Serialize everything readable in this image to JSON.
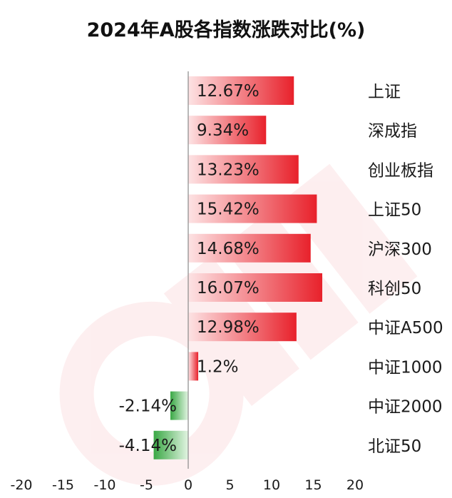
{
  "chart_data": {
    "type": "bar",
    "orientation": "horizontal",
    "title": "2024年A股各指数涨跌对比(%)",
    "categories": [
      "上证",
      "深成指",
      "创业板指",
      "上证50",
      "沪深300",
      "科创50",
      "中证A500",
      "中证1000",
      "中证2000",
      "北证50"
    ],
    "values": [
      12.67,
      9.34,
      13.23,
      15.42,
      14.68,
      16.07,
      12.98,
      1.2,
      -2.14,
      -4.14
    ],
    "value_labels": [
      "12.67%",
      "9.34%",
      "13.23%",
      "15.42%",
      "14.68%",
      "16.07%",
      "12.98%",
      "1.2%",
      "-2.14%",
      "-4.14%"
    ],
    "xlim": [
      -20,
      20
    ],
    "xticks": [
      -20,
      -15,
      -10,
      -5,
      0,
      5,
      10,
      15,
      20
    ],
    "xlabel": "",
    "ylabel": "",
    "grid": false,
    "legend": "none",
    "colors": {
      "positive": "#e8212b",
      "positive_fade": "#fde3e4",
      "negative": "#3aa845",
      "negative_fade": "#e2f4e2",
      "watermark": "#e8212b"
    }
  }
}
